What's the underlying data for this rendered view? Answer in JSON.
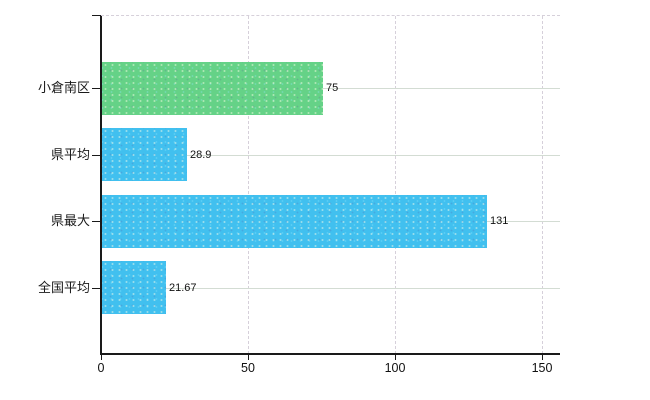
{
  "chart_data": {
    "type": "bar",
    "orientation": "horizontal",
    "title": "",
    "xlabel": "",
    "ylabel": "",
    "categories": [
      "小倉南区",
      "県平均",
      "県最大",
      "全国平均"
    ],
    "values": [
      75,
      28.9,
      131,
      21.67
    ],
    "value_labels": [
      "75",
      "28.9",
      "131",
      "21.67"
    ],
    "bar_colors": [
      "#65d287",
      "#41c0ef",
      "#41c0ef",
      "#41c0ef"
    ],
    "xlim": [
      0,
      150
    ],
    "xticks": [
      0,
      50,
      100,
      150
    ],
    "xtick_labels": [
      "0",
      "50",
      "100",
      "150"
    ],
    "grid": {
      "horizontal": "solid",
      "vertical": "dashed",
      "top_border": "dashed"
    },
    "legend_position": "none"
  },
  "colors": {
    "background": "#ffffff",
    "axis": "#1a1a1a",
    "grid_horizontal": "#d3dcd3",
    "grid_vertical": "#d6d0da",
    "text": "#1a1a1a",
    "bar_green": "#65d287",
    "bar_blue": "#41c0ef"
  }
}
